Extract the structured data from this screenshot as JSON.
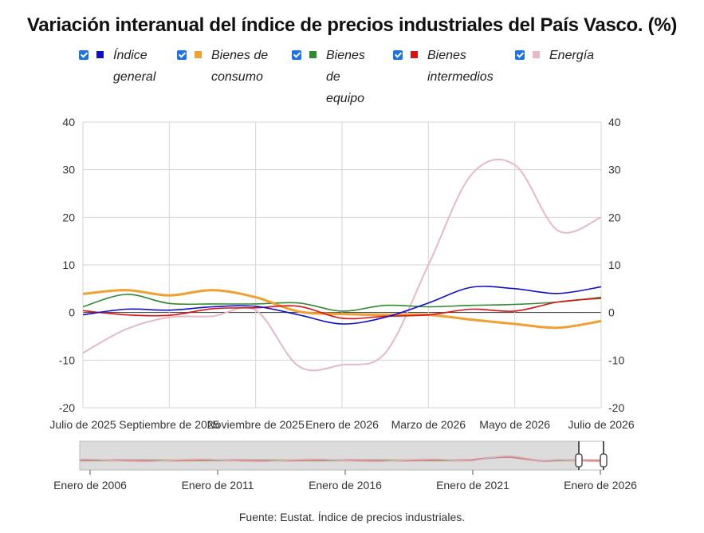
{
  "chart_data": {
    "type": "line",
    "title": "Variación interanual del índice de precios industriales del País Vasco. (%)",
    "ylim": [
      -20,
      40
    ],
    "yticks": [
      "40",
      "30",
      "20",
      "10",
      "0",
      "-10",
      "-20"
    ],
    "xticks": [
      "Julio de 2025",
      "Septiembre de 2025",
      "Noviembre de 2025",
      "Enero de 2026",
      "Marzo de 2026",
      "Mayo de 2026",
      "Julio de 2026"
    ],
    "x": [
      "2025-07",
      "2025-08",
      "2025-09",
      "2025-10",
      "2025-11",
      "2025-12",
      "2026-01",
      "2026-02",
      "2026-03",
      "2026-04",
      "2026-05",
      "2026-06",
      "2026-07"
    ],
    "series": [
      {
        "name": "Índice general",
        "color": "#1010cc",
        "values": [
          -0.5,
          0.7,
          0.5,
          1.2,
          1.3,
          -0.5,
          -2.4,
          -1.0,
          2.0,
          5.3,
          5.0,
          4.0,
          5.4
        ]
      },
      {
        "name": "Bienes de consumo",
        "color": "#f0a030",
        "values": [
          3.9,
          4.7,
          3.6,
          4.7,
          3.2,
          0.2,
          -0.3,
          -0.5,
          -0.5,
          -1.5,
          -2.4,
          -3.2,
          -1.8
        ]
      },
      {
        "name": "Bienes de equipo",
        "color": "#2e8b2e",
        "values": [
          1.2,
          3.8,
          1.9,
          1.8,
          1.8,
          2.0,
          0.3,
          1.5,
          1.2,
          1.5,
          1.7,
          2.2,
          3.2
        ]
      },
      {
        "name": "Bienes intermedios",
        "color": "#dd1111",
        "values": [
          0.4,
          -0.5,
          -0.6,
          0.8,
          1.0,
          1.3,
          -1.2,
          -0.8,
          -0.5,
          0.7,
          0.3,
          2.2,
          3.0
        ]
      },
      {
        "name": "Energía",
        "color": "#e6b9c5",
        "values": [
          -8.5,
          -3.5,
          -1.0,
          -0.8,
          0.5,
          -11.3,
          -11.0,
          -8.5,
          10.0,
          29.0,
          31.0,
          17.2,
          20.0
        ]
      }
    ]
  },
  "legend": [
    {
      "label": "Índice general",
      "color": "#1010cc",
      "checked": true
    },
    {
      "label": "Bienes de consumo",
      "color": "#f0a030",
      "checked": true
    },
    {
      "label": "Bienes de equipo",
      "color": "#2e8b2e",
      "checked": true
    },
    {
      "label": "Bienes intermedios",
      "color": "#dd1111",
      "checked": true
    },
    {
      "label": "Energía",
      "color": "#e6b9c5",
      "checked": true
    }
  ],
  "navigator": {
    "labels": [
      "Enero de 2006",
      "Enero de 2011",
      "Enero de 2016",
      "Enero de 2021",
      "Enero de 2026"
    ]
  },
  "source": "Fuente: Eustat. Índice de precios industriales."
}
